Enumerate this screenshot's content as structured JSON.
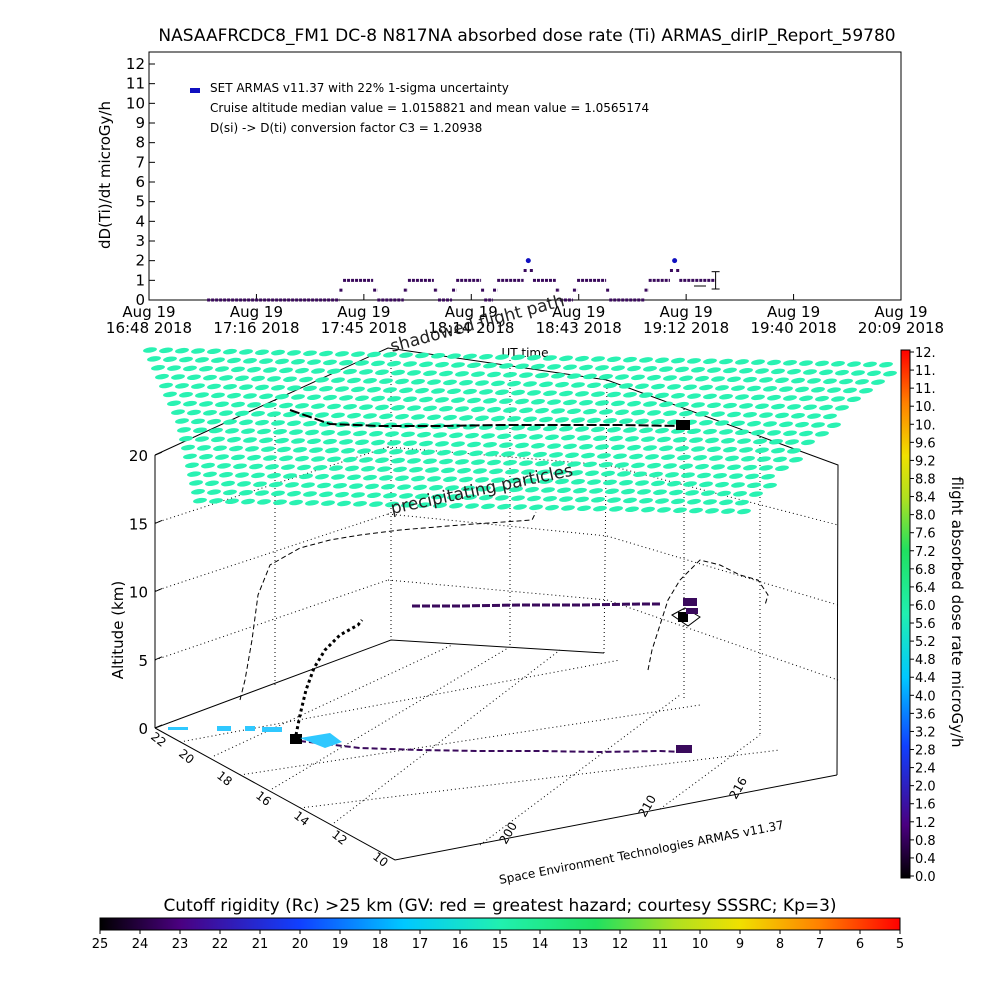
{
  "title": "NASAAFRCDC8_FM1 DC-8   N817NA absorbed dose rate (Ti) ARMAS_dirIP_Report_59780",
  "colors": {
    "accent": "#1010c0",
    "dose_points": "#3a0a5c",
    "precip_fill": "#29f2b2",
    "cutoff_fill": "#2fc8ff"
  },
  "chart_data": [
    {
      "type": "line",
      "ylabel": "dD(Ti)/dt microGy/h",
      "xlabel": "UT time",
      "ylim": [
        0,
        12
      ],
      "yticks": [
        "0",
        "1",
        "2",
        "3",
        "4",
        "5",
        "6",
        "7",
        "8",
        "9",
        "10",
        "11",
        "12"
      ],
      "xticks": [
        {
          "top": "Aug 19",
          "bottom": "16:48 2018"
        },
        {
          "top": "Aug 19",
          "bottom": "17:16 2018"
        },
        {
          "top": "Aug 19",
          "bottom": "17:45 2018"
        },
        {
          "top": "Aug 19",
          "bottom": "18:14 2018"
        },
        {
          "top": "Aug 19",
          "bottom": "18:43 2018"
        },
        {
          "top": "Aug 19",
          "bottom": "19:12 2018"
        },
        {
          "top": "Aug 19",
          "bottom": "19:40 2018"
        },
        {
          "top": "Aug 19",
          "bottom": "20:09 2018"
        }
      ],
      "legend": {
        "series_label": "SET ARMAS v11.37 with 22% 1-sigma uncertainty",
        "line2": "Cruise altitude median value = 1.0158821 and mean value = 1.0565174",
        "line3": "D(si) -> D(ti) conversion factor C3 = 1.20938"
      },
      "series": [
        {
          "name": "SET ARMAS v11.37 with 22% 1-sigma uncertainty",
          "segments": [
            {
              "t": [
                0.112,
                0.367
              ],
              "v": 0
            },
            {
              "t": [
                0.367,
                0.374
              ],
              "v": 0.5
            },
            {
              "t": [
                0.374,
                0.432
              ],
              "v": 1
            },
            {
              "t": [
                0.432,
                0.44
              ],
              "v": 0.5
            },
            {
              "t": [
                0.44,
                0.491
              ],
              "v": 0
            },
            {
              "t": [
                0.491,
                0.499
              ],
              "v": 0.5
            },
            {
              "t": [
                0.499,
                0.549
              ],
              "v": 1
            },
            {
              "t": [
                0.549,
                0.557
              ],
              "v": 0.5
            },
            {
              "t": [
                0.557,
                0.584
              ],
              "v": 0
            },
            {
              "t": [
                0.584,
                0.592
              ],
              "v": 0.5
            },
            {
              "t": [
                0.592,
                0.64
              ],
              "v": 1
            },
            {
              "t": [
                0.64,
                0.646
              ],
              "v": 0.5
            },
            {
              "t": [
                0.646,
                0.663
              ],
              "v": 0
            },
            {
              "t": [
                0.663,
                0.671
              ],
              "v": 0.5
            },
            {
              "t": [
                0.671,
                0.722
              ],
              "v": 1
            },
            {
              "t": [
                0.722,
                0.728
              ],
              "v": 1.5
            },
            {
              "t": [
                0.728,
                0.734
              ],
              "v": 2
            },
            {
              "t": [
                0.734,
                0.74
              ],
              "v": 1.5
            },
            {
              "t": [
                0.74,
                0.784
              ],
              "v": 1
            },
            {
              "t": [
                0.784,
                0.792
              ],
              "v": 0.5
            },
            {
              "t": [
                0.792,
                0.817
              ],
              "v": 0
            },
            {
              "t": [
                0.817,
                0.825
              ],
              "v": 0.5
            },
            {
              "t": [
                0.825,
                0.881
              ],
              "v": 1
            },
            {
              "t": [
                0.881,
                0.887
              ],
              "v": 0.5
            },
            {
              "t": [
                0.887,
                0.955
              ],
              "v": 0
            },
            {
              "t": [
                0.955,
                0.963
              ],
              "v": 0.5
            },
            {
              "t": [
                0.963,
                1.004
              ],
              "v": 1
            },
            {
              "t": [
                1.004,
                1.01
              ],
              "v": 1.5
            },
            {
              "t": [
                1.01,
                1.016
              ],
              "v": 2
            },
            {
              "t": [
                1.016,
                1.022
              ],
              "v": 1.5
            },
            {
              "t": [
                1.022,
                1.092
              ],
              "v": 1
            }
          ],
          "errorbar": {
            "t": 1.092,
            "v": 1,
            "err": 0.22
          }
        }
      ]
    },
    {
      "type": "scatter",
      "zlabel": "Altitude (km)",
      "zlim": [
        0,
        20
      ],
      "zticks": [
        "0",
        "5",
        "10",
        "15",
        "20"
      ],
      "lat_ticks": [
        "10",
        "12",
        "14",
        "16",
        "18",
        "20",
        "22"
      ],
      "lon_ticks": [
        "200",
        "210",
        "216"
      ],
      "footer_label": "Space Environment Technologies ARMAS v11.37",
      "overlay_labels": {
        "shadow": "shadowed flight path",
        "precip": "precipitating particles"
      }
    }
  ],
  "colorbar_right": {
    "label": "flight absorbed dose rate microGy/h",
    "ticks": [
      "0.0",
      "0.4",
      "0.8",
      "1.2",
      "1.6",
      "2.0",
      "2.4",
      "2.8",
      "3.2",
      "3.6",
      "4.0",
      "4.4",
      "4.8",
      "5.2",
      "5.6",
      "6.0",
      "6.4",
      "6.8",
      "7.2",
      "7.6",
      "8.0",
      "8.4",
      "8.8",
      "9.2",
      "9.6",
      "10.",
      "10.",
      "11.",
      "11.",
      "12."
    ]
  },
  "colorbar_bottom": {
    "label": "Cutoff rigidity (Rc) >25 km (GV: red = greatest hazard; courtesy SSSRC; Kp=3)",
    "ticks": [
      "25",
      "24",
      "23",
      "22",
      "21",
      "20",
      "19",
      "18",
      "17",
      "16",
      "15",
      "14",
      "13",
      "12",
      "11",
      "10",
      "9",
      "8",
      "7",
      "6",
      "5"
    ]
  }
}
